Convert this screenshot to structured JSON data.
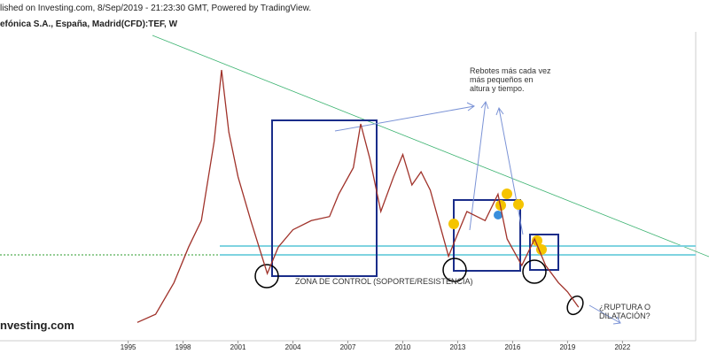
{
  "header": {
    "published": "lished on Investing.com, 8/Sep/2019 - 21:23:30 GMT, Powered by TradingView.",
    "instrument": "efónica S.A., España, Madrid(CFD):TEF, W"
  },
  "logo": "nvesting.com",
  "chart_data": {
    "type": "line",
    "x": [
      1995.5,
      1996.5,
      1997.5,
      1998.3,
      1999,
      1999.7,
      2000.1,
      2000.5,
      2001,
      2001.7,
      2002.6,
      2003.2,
      2004,
      2005,
      2006,
      2006.5,
      2007.3,
      2007.7,
      2008.2,
      2008.8,
      2009.5,
      2010,
      2010.5,
      2011,
      2011.5,
      2012.5,
      2013,
      2013.5,
      2014.5,
      2015.2,
      2015.7,
      2016.5,
      2017.2,
      2017.8,
      2018.5,
      2019,
      2019.6
    ],
    "series": [
      {
        "color": "#a0322a",
        "values": [
          2.8,
          3.6,
          6.7,
          10.2,
          12.8,
          20.6,
          27.6,
          21.5,
          17.1,
          12.8,
          7.6,
          10.2,
          11.9,
          12.8,
          13.2,
          15.4,
          18.0,
          22.3,
          18.9,
          13.7,
          17.1,
          19.3,
          16.3,
          17.6,
          15.8,
          9.3,
          11.5,
          13.7,
          12.8,
          15.4,
          11.0,
          8.4,
          11.0,
          8.4,
          6.7,
          5.8,
          4.3
        ]
      }
    ],
    "xlim": [
      1988,
      2026
    ],
    "xticks": [
      1995,
      1998,
      2001,
      2004,
      2007,
      2010,
      2013,
      2016,
      2019,
      2022
    ],
    "ylim": [
      1,
      31
    ],
    "annotations": {
      "rebounds": "Rebotes más cada vez más pequeños en altura y tiempo.",
      "zone": "ZONA DE CONTROL (SOPORTE/RESISTENCIA)",
      "question": "¿RUPTURA O DILATACIÓN?"
    }
  }
}
